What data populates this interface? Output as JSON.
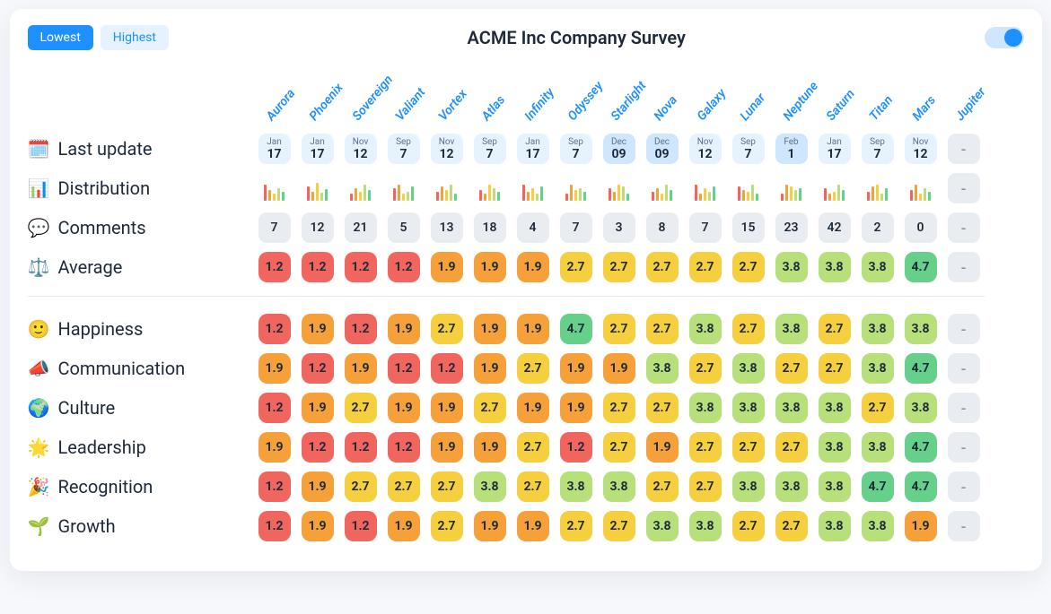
{
  "header": {
    "lowest_label": "Lowest",
    "highest_label": "Highest",
    "title": "ACME Inc Company Survey",
    "active_segment": "lowest",
    "toggle_on": true
  },
  "palette": {
    "score_colors": {
      "1.2": "#f0655d",
      "1.9": "#f6a03a",
      "2.7": "#f6cf3f",
      "3.8": "#b7e07a",
      "4.7": "#66d08a"
    },
    "na_color": "#e9edf1",
    "date_bg": "#e6f2ff",
    "date_bg_alt": "#cfe6ff"
  },
  "bar_colors": [
    "#f0655d",
    "#f6a03a",
    "#f6cf3f",
    "#b7e07a",
    "#66d08a"
  ],
  "columns": [
    "Aurora",
    "Phoenix",
    "Sovereign",
    "Valiant",
    "Vortex",
    "Atlas",
    "Infinity",
    "Odyssey",
    "Starlight",
    "Nova",
    "Galaxy",
    "Lunar",
    "Neptune",
    "Saturn",
    "Titan",
    "Mars",
    "Jupiter"
  ],
  "top_rows": [
    {
      "key": "last_update",
      "icon": "🗓️",
      "label": "Last update",
      "type": "date",
      "values": [
        {
          "m": "Jan",
          "d": "17"
        },
        {
          "m": "Jan",
          "d": "17"
        },
        {
          "m": "Nov",
          "d": "12"
        },
        {
          "m": "Sep",
          "d": "7"
        },
        {
          "m": "Nov",
          "d": "12"
        },
        {
          "m": "Sep",
          "d": "7"
        },
        {
          "m": "Jan",
          "d": "17"
        },
        {
          "m": "Sep",
          "d": "7"
        },
        {
          "m": "Dec",
          "d": "09",
          "alt": true
        },
        {
          "m": "Dec",
          "d": "09",
          "alt": true
        },
        {
          "m": "Nov",
          "d": "12"
        },
        {
          "m": "Sep",
          "d": "7"
        },
        {
          "m": "Feb",
          "d": "1",
          "alt": true
        },
        {
          "m": "Jan",
          "d": "17"
        },
        {
          "m": "Sep",
          "d": "7"
        },
        {
          "m": "Nov",
          "d": "12"
        },
        null
      ]
    },
    {
      "key": "distribution",
      "icon": "📊",
      "label": "Distribution",
      "type": "bars",
      "values": [
        [
          18,
          12,
          8,
          14,
          10
        ],
        [
          16,
          10,
          20,
          9,
          13
        ],
        [
          8,
          14,
          10,
          18,
          12
        ],
        [
          14,
          18,
          8,
          10,
          16
        ],
        [
          10,
          16,
          12,
          18,
          8
        ],
        [
          12,
          8,
          18,
          14,
          10
        ],
        [
          18,
          10,
          14,
          8,
          16
        ],
        [
          8,
          18,
          12,
          14,
          10
        ],
        [
          14,
          10,
          18,
          16,
          8
        ],
        [
          10,
          14,
          8,
          18,
          12
        ],
        [
          18,
          8,
          14,
          10,
          16
        ],
        [
          16,
          12,
          10,
          18,
          8
        ],
        [
          8,
          18,
          16,
          12,
          14
        ],
        [
          14,
          8,
          10,
          18,
          12
        ],
        [
          10,
          16,
          18,
          8,
          14
        ],
        [
          12,
          18,
          8,
          14,
          10
        ],
        null
      ]
    },
    {
      "key": "comments",
      "icon": "💬",
      "label": "Comments",
      "type": "count",
      "values": [
        7,
        12,
        21,
        5,
        13,
        18,
        4,
        7,
        3,
        8,
        7,
        15,
        23,
        42,
        2,
        0,
        null
      ]
    },
    {
      "key": "average",
      "icon": "⚖️",
      "label": "Average",
      "type": "score",
      "values": [
        1.2,
        1.2,
        1.2,
        1.2,
        1.9,
        1.9,
        1.9,
        2.7,
        2.7,
        2.7,
        2.7,
        2.7,
        3.8,
        3.8,
        3.8,
        4.7,
        null
      ]
    }
  ],
  "metric_rows": [
    {
      "key": "happiness",
      "icon": "🙂",
      "label": "Happiness",
      "values": [
        1.2,
        1.9,
        1.2,
        1.9,
        2.7,
        1.9,
        1.9,
        4.7,
        2.7,
        2.7,
        3.8,
        2.7,
        3.8,
        2.7,
        3.8,
        3.8,
        null
      ]
    },
    {
      "key": "communication",
      "icon": "📣",
      "label": "Communication",
      "values": [
        1.9,
        1.2,
        1.9,
        1.2,
        1.2,
        1.9,
        2.7,
        1.9,
        1.9,
        3.8,
        2.7,
        3.8,
        2.7,
        2.7,
        3.8,
        4.7,
        null
      ]
    },
    {
      "key": "culture",
      "icon": "🌍",
      "label": "Culture",
      "values": [
        1.2,
        1.9,
        2.7,
        1.9,
        1.9,
        2.7,
        1.9,
        1.9,
        2.7,
        2.7,
        3.8,
        3.8,
        3.8,
        3.8,
        2.7,
        3.8,
        null
      ]
    },
    {
      "key": "leadership",
      "icon": "🌟",
      "label": "Leadership",
      "values": [
        1.9,
        1.2,
        1.2,
        1.2,
        1.9,
        1.9,
        2.7,
        1.2,
        2.7,
        1.9,
        2.7,
        2.7,
        2.7,
        3.8,
        3.8,
        4.7,
        null
      ]
    },
    {
      "key": "recognition",
      "icon": "🎉",
      "label": "Recognition",
      "values": [
        1.2,
        1.9,
        2.7,
        2.7,
        2.7,
        3.8,
        2.7,
        3.8,
        3.8,
        2.7,
        2.7,
        3.8,
        3.8,
        3.8,
        4.7,
        4.7,
        null
      ]
    },
    {
      "key": "growth",
      "icon": "🌱",
      "label": "Growth",
      "values": [
        1.2,
        1.9,
        1.2,
        1.9,
        2.7,
        1.9,
        1.9,
        2.7,
        2.7,
        3.8,
        3.8,
        2.7,
        2.7,
        3.8,
        3.8,
        1.9,
        null
      ]
    }
  ]
}
